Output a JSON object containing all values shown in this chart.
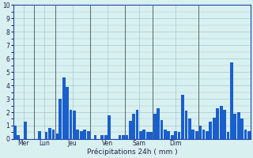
{
  "xlabel": "Précipitations 24h ( mm )",
  "background_color": "#d8f0f0",
  "plot_bg_color": "#d8f0f0",
  "bar_color": "#1a5fcc",
  "grid_color": "#a8c8c8",
  "separator_color": "#556677",
  "ylim": [
    0,
    10
  ],
  "yticks": [
    0,
    1,
    2,
    3,
    4,
    5,
    6,
    7,
    8,
    9,
    10
  ],
  "day_labels": [
    "Mer",
    "Lun",
    "Jeu",
    "Ven",
    "Sam",
    "Dim"
  ],
  "values": [
    1.0,
    0.3,
    0.0,
    1.3,
    0.0,
    0.0,
    0.0,
    0.6,
    0.0,
    0.5,
    0.8,
    0.7,
    0.4,
    3.0,
    4.6,
    3.9,
    2.2,
    2.1,
    0.7,
    0.6,
    0.7,
    0.6,
    0.0,
    0.3,
    0.0,
    0.3,
    0.3,
    1.75,
    0.0,
    0.0,
    0.3,
    0.3,
    0.3,
    1.35,
    1.9,
    2.2,
    0.6,
    0.7,
    0.5,
    0.5,
    1.9,
    2.3,
    1.4,
    0.7,
    0.6,
    0.3,
    0.6,
    0.5,
    3.3,
    2.1,
    1.5,
    0.7,
    0.6,
    1.0,
    0.7,
    0.6,
    1.3,
    1.6,
    2.3,
    2.5,
    2.2,
    0.5,
    5.7,
    1.9,
    2.0,
    1.5,
    0.7,
    0.6
  ],
  "day_sep_positions": [
    6,
    12,
    22,
    32,
    40,
    53
  ]
}
